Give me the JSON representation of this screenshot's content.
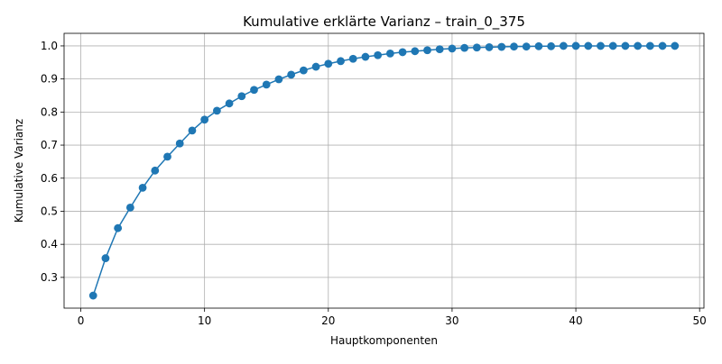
{
  "chart_data": {
    "type": "line",
    "title": "Kumulative erklärte Varianz – train_0_375",
    "xlabel": "Hauptkomponenten",
    "ylabel": "Kumulative Varianz",
    "xlim": [
      -1.35,
      50.35
    ],
    "ylim": [
      0.207,
      1.038
    ],
    "xticks": [
      0,
      10,
      20,
      30,
      40,
      50
    ],
    "yticks": [
      0.3,
      0.4,
      0.5,
      0.6,
      0.7,
      0.8,
      0.9,
      1.0
    ],
    "grid": true,
    "legend": "none",
    "marker": "circle",
    "color": "#1f77b4",
    "series": [
      {
        "x": [
          1,
          2,
          3,
          4,
          5,
          6,
          7,
          8,
          9,
          10,
          11,
          12,
          13,
          14,
          15,
          16,
          17,
          18,
          19,
          20,
          21,
          22,
          23,
          24,
          25,
          26,
          27,
          28,
          29,
          30,
          31,
          32,
          33,
          34,
          35,
          36,
          37,
          38,
          39,
          40,
          41,
          42,
          43,
          44,
          45,
          46,
          47,
          48
        ],
        "values": [
          0.245,
          0.358,
          0.449,
          0.511,
          0.571,
          0.623,
          0.665,
          0.705,
          0.744,
          0.777,
          0.804,
          0.826,
          0.848,
          0.867,
          0.883,
          0.899,
          0.913,
          0.926,
          0.937,
          0.946,
          0.954,
          0.961,
          0.967,
          0.972,
          0.977,
          0.981,
          0.984,
          0.987,
          0.99,
          0.992,
          0.994,
          0.995,
          0.996,
          0.997,
          0.998,
          0.998,
          0.999,
          0.999,
          1.0,
          1.0,
          1.0,
          1.0,
          1.0,
          1.0,
          1.0,
          1.0,
          1.0,
          1.0
        ]
      }
    ]
  }
}
